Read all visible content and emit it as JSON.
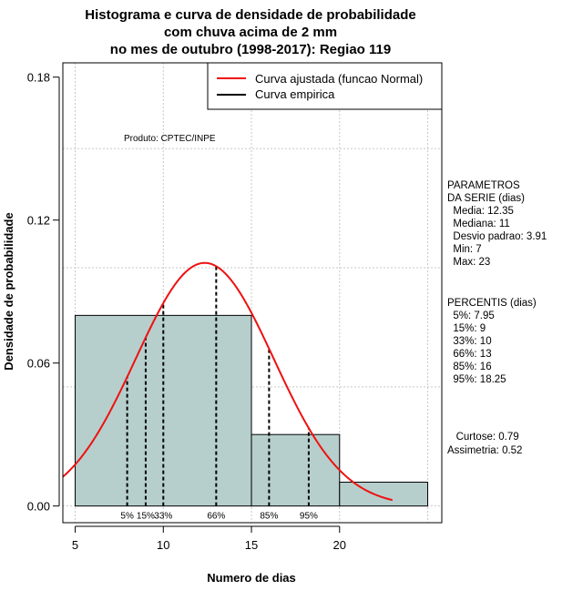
{
  "chart_data": {
    "type": "histogram",
    "title_lines": [
      "Histograma e curva de densidade de probabilidade",
      "com chuva acima de 2 mm",
      "no mes de outubro (1998-2017): Regiao 119"
    ],
    "xlabel": "Numero de dias",
    "ylabel": "Densidade de probabilidade",
    "xlim": [
      4.3,
      25.8
    ],
    "ylim": [
      -0.007,
      0.186
    ],
    "x_ticks": [
      5,
      10,
      15,
      20
    ],
    "x_tick_labels": [
      "5",
      "10",
      "15",
      "20"
    ],
    "y_ticks": [
      0.0,
      0.06,
      0.12,
      0.18
    ],
    "y_tick_labels": [
      "0.00",
      "0.06",
      "0.12",
      "0.18"
    ],
    "grid": true,
    "grid_x": [
      5,
      10,
      15,
      20,
      25
    ],
    "grid_y": [
      0.0,
      0.05,
      0.1,
      0.15
    ],
    "bars": [
      {
        "x0": 5,
        "x1": 15,
        "density": 0.08
      },
      {
        "x0": 15,
        "x1": 20,
        "density": 0.03
      },
      {
        "x0": 20,
        "x1": 25,
        "density": 0.01
      }
    ],
    "bar_color": "#b6cfcc",
    "normal_curve": {
      "mean": 12.35,
      "sd": 3.91,
      "x_from": 4.3,
      "x_to": 23,
      "color": "#ee1111"
    },
    "percentiles": [
      {
        "label": "5%",
        "x": 7.95
      },
      {
        "label": "15%",
        "x": 9
      },
      {
        "label": "33%",
        "x": 10
      },
      {
        "label": "66%",
        "x": 13
      },
      {
        "label": "85%",
        "x": 16
      },
      {
        "label": "95%",
        "x": 18.25
      }
    ],
    "legend": {
      "position": "top-right",
      "entries": [
        {
          "label": "Curva ajustada (funcao Normal)",
          "color": "#ee1111"
        },
        {
          "label": "Curva empirica",
          "color": "#000000"
        }
      ]
    },
    "annotation": "Produto: CPTEC/INPE",
    "side_panel": {
      "parametros": [
        "PARAMETROS",
        "DA SERIE (dias)",
        "  Media: 12.35",
        "  Mediana: 11",
        "  Desvio padrao: 3.91",
        "  Min: 7",
        "  Max: 23"
      ],
      "percentis": [
        "PERCENTIS (dias)",
        "  5%: 7.95",
        "  15%: 9",
        "  33%: 10",
        "  66%: 13",
        "  85%: 16",
        "  95%: 18.25"
      ],
      "extras": [
        "   Curtose: 0.79",
        "Assimetria: 0.52"
      ]
    }
  }
}
